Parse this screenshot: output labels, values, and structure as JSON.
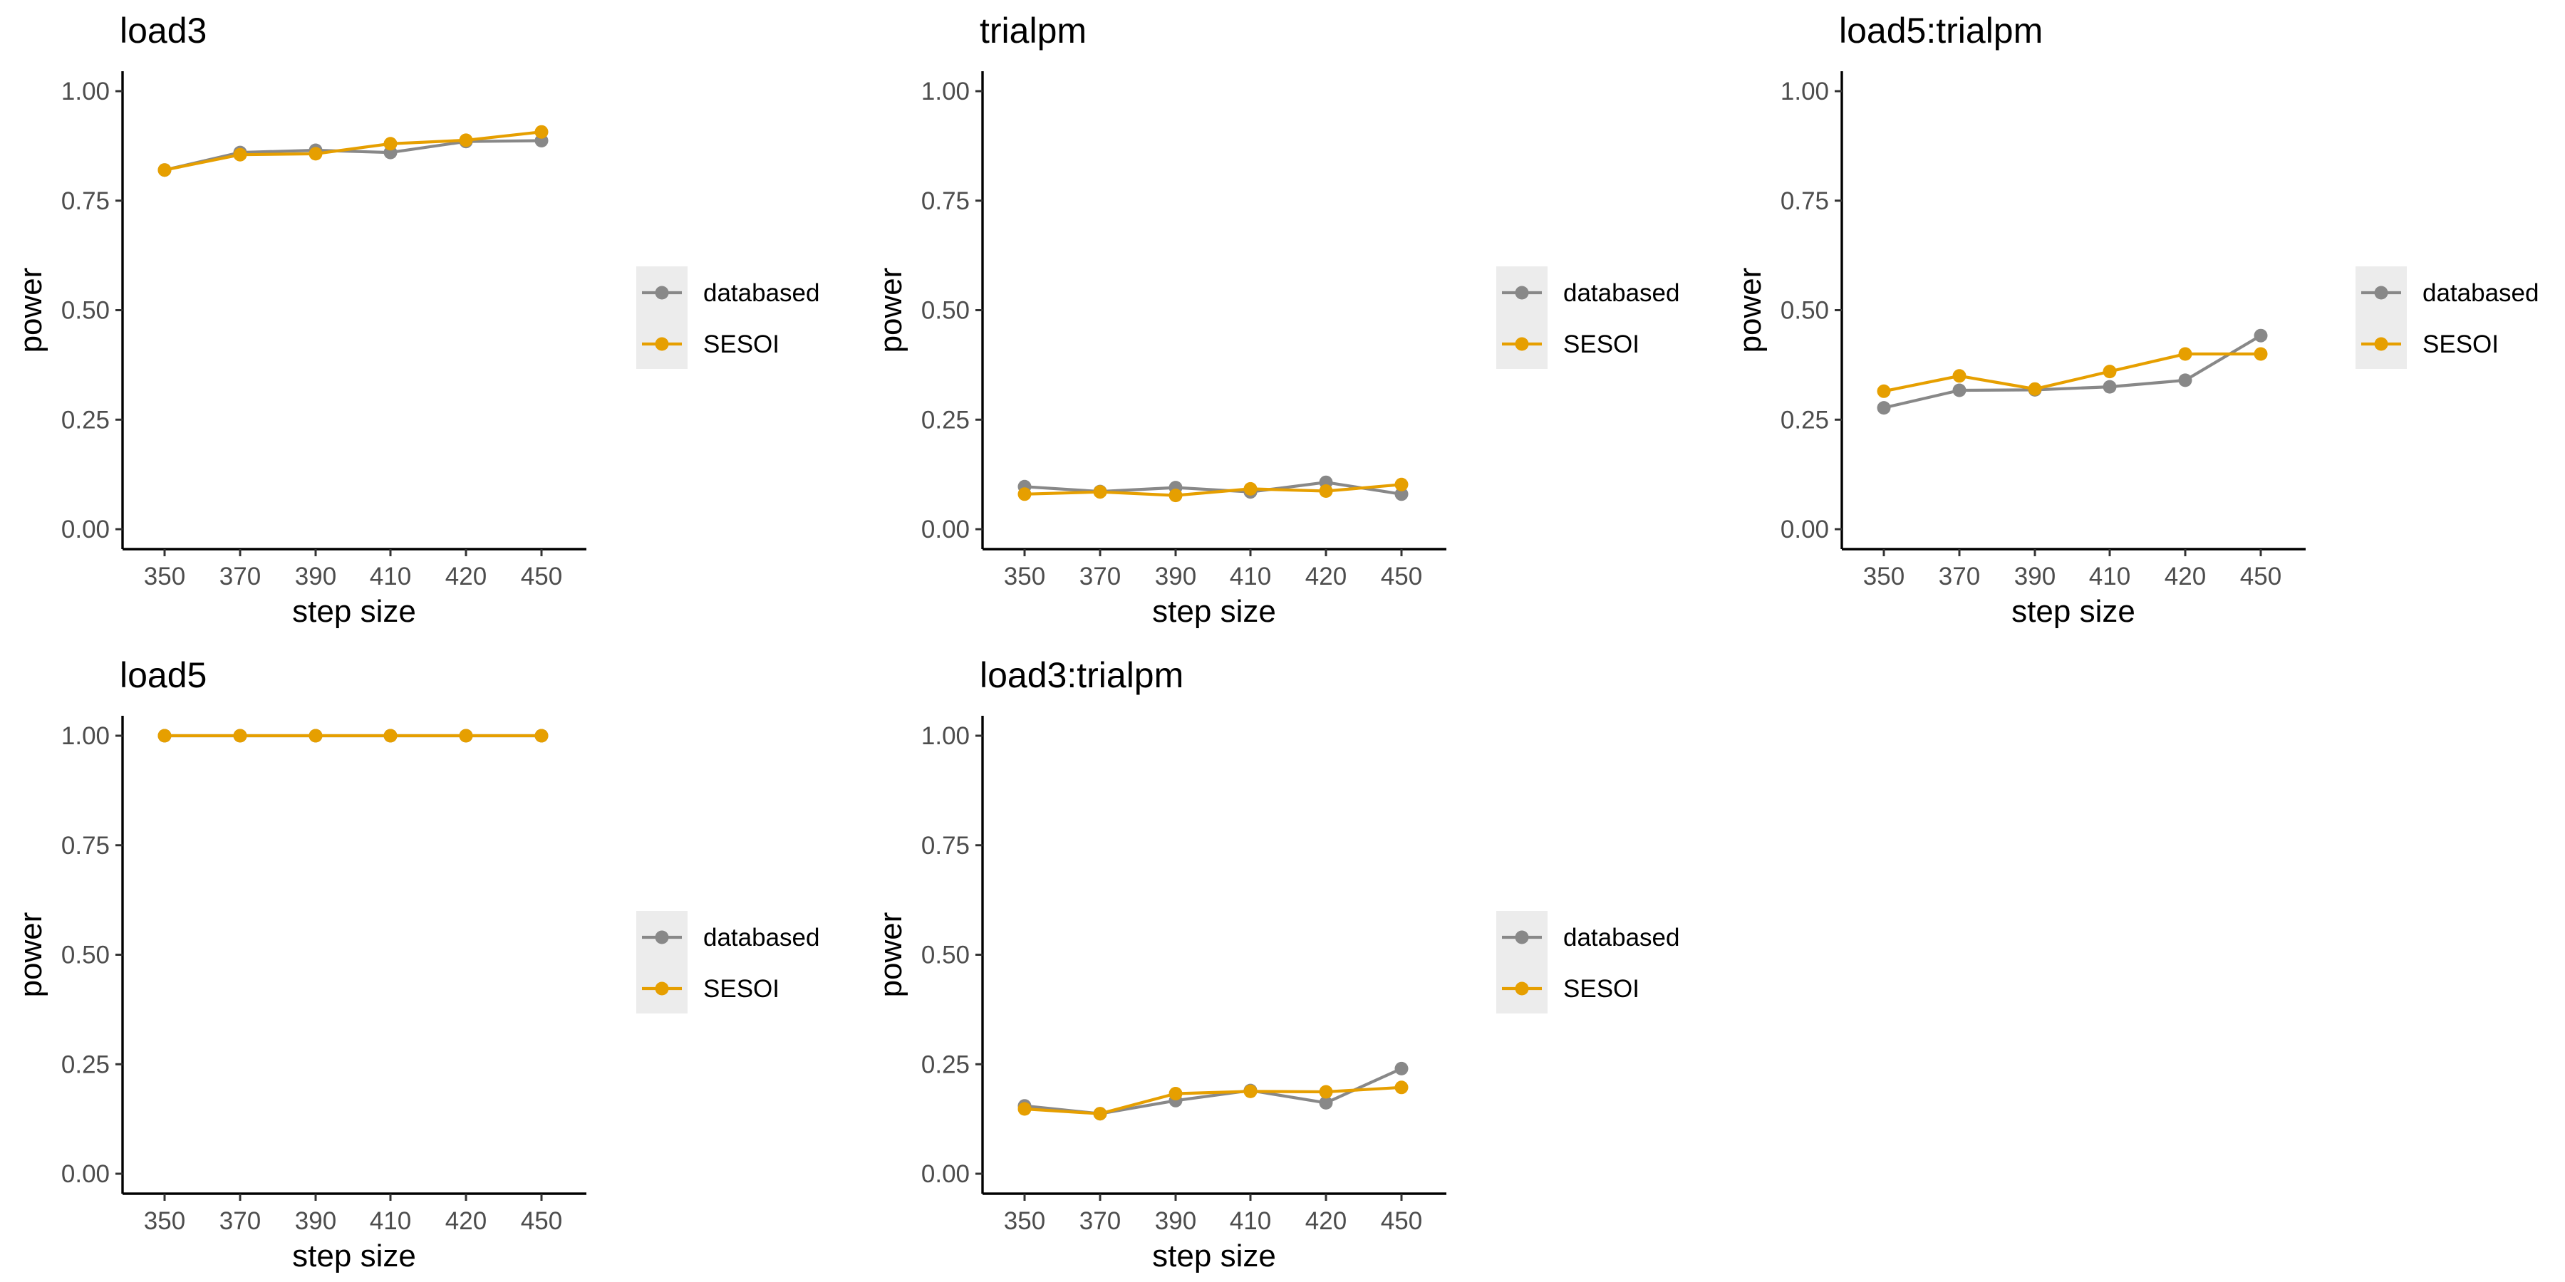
{
  "legend": {
    "entries": [
      {
        "label": "databased",
        "color": "#888888"
      },
      {
        "label": "SESOI",
        "color": "#E69F00"
      }
    ]
  },
  "chart_data": [
    {
      "type": "line",
      "title": "load3",
      "xlabel": "step size",
      "ylabel": "power",
      "categories": [
        "350",
        "370",
        "390",
        "410",
        "420",
        "450"
      ],
      "ylim": [
        0,
        1
      ],
      "yticks": [
        "0.00",
        "0.25",
        "0.50",
        "0.75",
        "1.00"
      ],
      "grid": false,
      "legend_position": "right",
      "series": [
        {
          "name": "databased",
          "color": "#888888",
          "values": [
            0.82,
            0.86,
            0.865,
            0.86,
            0.885,
            0.887
          ]
        },
        {
          "name": "SESOI",
          "color": "#E69F00",
          "values": [
            0.82,
            0.855,
            0.857,
            0.88,
            0.888,
            0.907
          ]
        }
      ]
    },
    {
      "type": "line",
      "title": "trialpm",
      "xlabel": "step size",
      "ylabel": "power",
      "categories": [
        "350",
        "370",
        "390",
        "410",
        "420",
        "450"
      ],
      "ylim": [
        0,
        1
      ],
      "yticks": [
        "0.00",
        "0.25",
        "0.50",
        "0.75",
        "1.00"
      ],
      "grid": false,
      "legend_position": "right",
      "series": [
        {
          "name": "databased",
          "color": "#888888",
          "values": [
            0.097,
            0.086,
            0.095,
            0.085,
            0.107,
            0.08
          ]
        },
        {
          "name": "SESOI",
          "color": "#E69F00",
          "values": [
            0.08,
            0.085,
            0.077,
            0.092,
            0.087,
            0.102
          ]
        }
      ]
    },
    {
      "type": "line",
      "title": "load5:trialpm",
      "xlabel": "step size",
      "ylabel": "power",
      "categories": [
        "350",
        "370",
        "390",
        "410",
        "420",
        "450"
      ],
      "ylim": [
        0,
        1
      ],
      "yticks": [
        "0.00",
        "0.25",
        "0.50",
        "0.75",
        "1.00"
      ],
      "grid": false,
      "legend_position": "right",
      "series": [
        {
          "name": "databased",
          "color": "#888888",
          "values": [
            0.277,
            0.317,
            0.318,
            0.325,
            0.34,
            0.442
          ]
        },
        {
          "name": "SESOI",
          "color": "#E69F00",
          "values": [
            0.315,
            0.35,
            0.32,
            0.36,
            0.4,
            0.4
          ]
        }
      ]
    },
    {
      "type": "line",
      "title": "load5",
      "xlabel": "step size",
      "ylabel": "power",
      "categories": [
        "350",
        "370",
        "390",
        "410",
        "420",
        "450"
      ],
      "ylim": [
        0,
        1
      ],
      "yticks": [
        "0.00",
        "0.25",
        "0.50",
        "0.75",
        "1.00"
      ],
      "grid": false,
      "legend_position": "right",
      "series": [
        {
          "name": "databased",
          "color": "#888888",
          "values": [
            1.0,
            1.0,
            1.0,
            1.0,
            1.0,
            1.0
          ]
        },
        {
          "name": "SESOI",
          "color": "#E69F00",
          "values": [
            1.0,
            1.0,
            1.0,
            1.0,
            1.0,
            1.0
          ]
        }
      ]
    },
    {
      "type": "line",
      "title": "load3:trialpm",
      "xlabel": "step size",
      "ylabel": "power",
      "categories": [
        "350",
        "370",
        "390",
        "410",
        "420",
        "450"
      ],
      "ylim": [
        0,
        1
      ],
      "yticks": [
        "0.00",
        "0.25",
        "0.50",
        "0.75",
        "1.00"
      ],
      "grid": false,
      "legend_position": "right",
      "series": [
        {
          "name": "databased",
          "color": "#888888",
          "values": [
            0.155,
            0.137,
            0.167,
            0.19,
            0.162,
            0.24
          ]
        },
        {
          "name": "SESOI",
          "color": "#E69F00",
          "values": [
            0.148,
            0.137,
            0.183,
            0.188,
            0.187,
            0.197
          ]
        }
      ]
    }
  ]
}
